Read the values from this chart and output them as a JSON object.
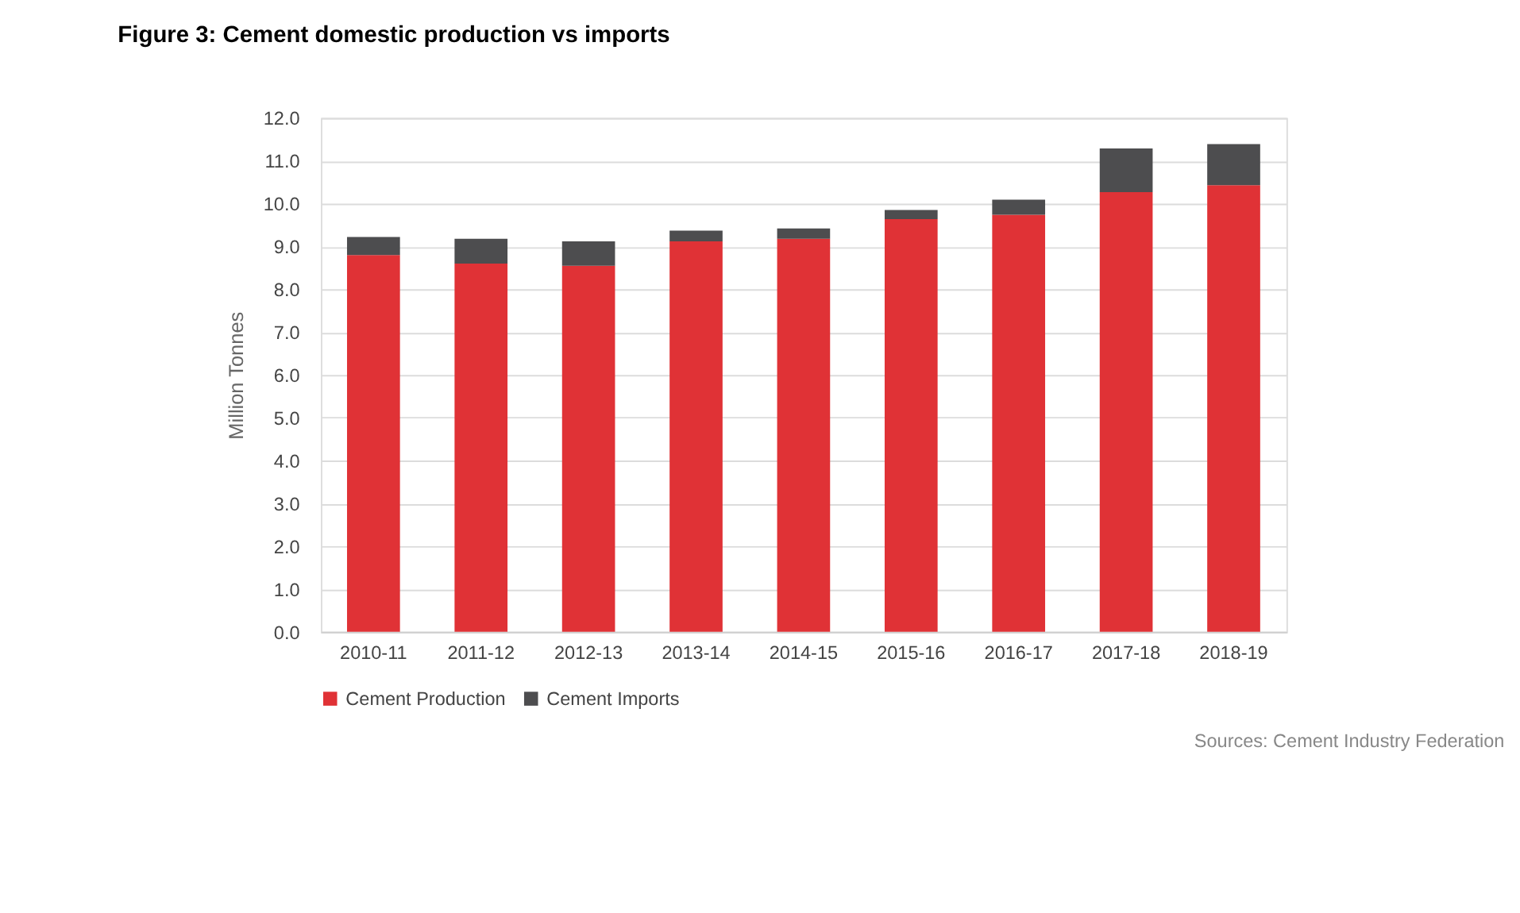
{
  "chart_data": {
    "type": "bar",
    "stacked": true,
    "title": "Figure 3: Cement domestic production vs imports",
    "ylabel": "Million Tonnes",
    "categories": [
      "2010-11",
      "2011-12",
      "2012-13",
      "2013-14",
      "2014-15",
      "2015-16",
      "2016-17",
      "2017-18",
      "2018-19"
    ],
    "series": [
      {
        "name": "Cement Production",
        "color": "#e03236",
        "values": [
          8.8,
          8.6,
          8.55,
          9.12,
          9.18,
          9.64,
          9.74,
          10.27,
          10.43
        ]
      },
      {
        "name": "Cement Imports",
        "color": "#4d4d4f",
        "values": [
          0.42,
          0.58,
          0.57,
          0.25,
          0.24,
          0.21,
          0.35,
          1.02,
          0.96
        ]
      }
    ],
    "ylim": [
      0,
      12
    ],
    "yticks": [
      {
        "value": 0,
        "label": "0.0"
      },
      {
        "value": 1,
        "label": "1.0"
      },
      {
        "value": 2,
        "label": "2.0"
      },
      {
        "value": 3,
        "label": "3.0"
      },
      {
        "value": 4,
        "label": "4.0"
      },
      {
        "value": 5,
        "label": "5.0"
      },
      {
        "value": 6,
        "label": "6.0"
      },
      {
        "value": 7,
        "label": "7.0"
      },
      {
        "value": 8,
        "label": "8.0"
      },
      {
        "value": 9,
        "label": "9.0"
      },
      {
        "value": 10,
        "label": "10.0"
      },
      {
        "value": 11,
        "label": "11.0"
      },
      {
        "value": 12,
        "label": "12.0"
      }
    ],
    "grid": "y",
    "legend": "bottom",
    "annotations": [
      "Sources: Cement Industry Federation"
    ]
  }
}
